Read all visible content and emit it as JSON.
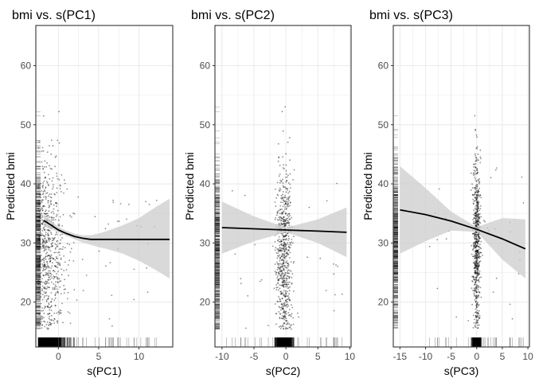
{
  "chart_data": [
    {
      "type": "scatter",
      "title": "bmi  vs. s(PC1)",
      "xlabel": "s(PC1)",
      "ylabel": "Predicted bmi",
      "xlim": [
        -2.8,
        14.2
      ],
      "ylim": [
        12.4,
        66.8
      ],
      "xticks": [
        0,
        5,
        10
      ],
      "yticks": [
        20,
        30,
        40,
        50,
        60
      ],
      "grid": true,
      "legend": "none",
      "colors": {
        "points": "#000000",
        "band": "#cccccc",
        "line": "#000000",
        "grid": "#ebebeb"
      },
      "points_cloud": {
        "x_center": -1.2,
        "x_spread": 1.1,
        "x_tail_max": 13,
        "y_center": 29,
        "y_spread": 7.5,
        "count": 700
      },
      "fit": {
        "x": [
          -1.8,
          -1,
          0,
          1,
          2,
          3,
          4,
          5,
          6,
          8,
          10,
          12,
          13.8
        ],
        "y": [
          33.8,
          33.1,
          32.2,
          31.6,
          31.1,
          30.8,
          30.6,
          30.6,
          30.6,
          30.6,
          30.6,
          30.6,
          30.6
        ]
      },
      "ci": {
        "lower": [
          32.8,
          32.4,
          31.8,
          31.2,
          30.6,
          30.1,
          29.7,
          29.3,
          29.0,
          28.2,
          27.0,
          25.5,
          24.0
        ],
        "upper": [
          34.8,
          33.9,
          32.7,
          32.1,
          31.6,
          31.3,
          31.3,
          31.6,
          32.0,
          33.0,
          34.2,
          36.0,
          37.5
        ]
      }
    },
    {
      "type": "scatter",
      "title": "bmi  vs. s(PC2)",
      "xlabel": "s(PC2)",
      "ylabel": "Predicted bmi",
      "xlim": [
        -11.1,
        10.2
      ],
      "ylim": [
        12.4,
        66.8
      ],
      "xticks": [
        -10,
        -5,
        0,
        5,
        10
      ],
      "yticks": [
        20,
        30,
        40,
        50,
        60
      ],
      "grid": true,
      "legend": "none",
      "colors": {
        "points": "#000000",
        "band": "#cccccc",
        "line": "#000000",
        "grid": "#ebebeb"
      },
      "points_cloud": {
        "x_center": -0.3,
        "x_spread": 0.6,
        "x_tail_max": 9.5,
        "y_center": 29,
        "y_spread": 7.5,
        "count": 700
      },
      "fit": {
        "x": [
          -10,
          -5,
          0,
          5,
          9.5
        ],
        "y": [
          32.6,
          32.4,
          32.2,
          32.0,
          31.8
        ]
      },
      "ci": {
        "lower": [
          28.2,
          30.3,
          31.8,
          30.0,
          27.6
        ],
        "upper": [
          37.0,
          34.5,
          32.6,
          34.0,
          36.0
        ]
      }
    },
    {
      "type": "scatter",
      "title": "bmi  vs. s(PC3)",
      "xlabel": "s(PC3)",
      "ylabel": "Predicted bmi",
      "xlim": [
        -16.3,
        10.3
      ],
      "ylim": [
        12.4,
        66.8
      ],
      "xticks": [
        -15,
        -10,
        -5,
        0,
        5,
        10
      ],
      "yticks": [
        20,
        30,
        40,
        50,
        60
      ],
      "grid": true,
      "legend": "none",
      "colors": {
        "points": "#000000",
        "band": "#cccccc",
        "line": "#000000",
        "grid": "#ebebeb"
      },
      "points_cloud": {
        "x_center": 0,
        "x_spread": 0.35,
        "x_tail_max": 9.5,
        "y_center": 30,
        "y_spread": 7.5,
        "count": 700
      },
      "fit": {
        "x": [
          -15,
          -10,
          -5,
          0,
          5,
          9.5
        ],
        "y": [
          35.6,
          34.8,
          33.7,
          32.3,
          30.7,
          29.0
        ]
      },
      "ci": {
        "lower": [
          28.2,
          30.3,
          32.1,
          31.9,
          27.2,
          24.0
        ],
        "upper": [
          43.0,
          39.3,
          35.3,
          32.7,
          34.2,
          34.0
        ]
      }
    }
  ]
}
